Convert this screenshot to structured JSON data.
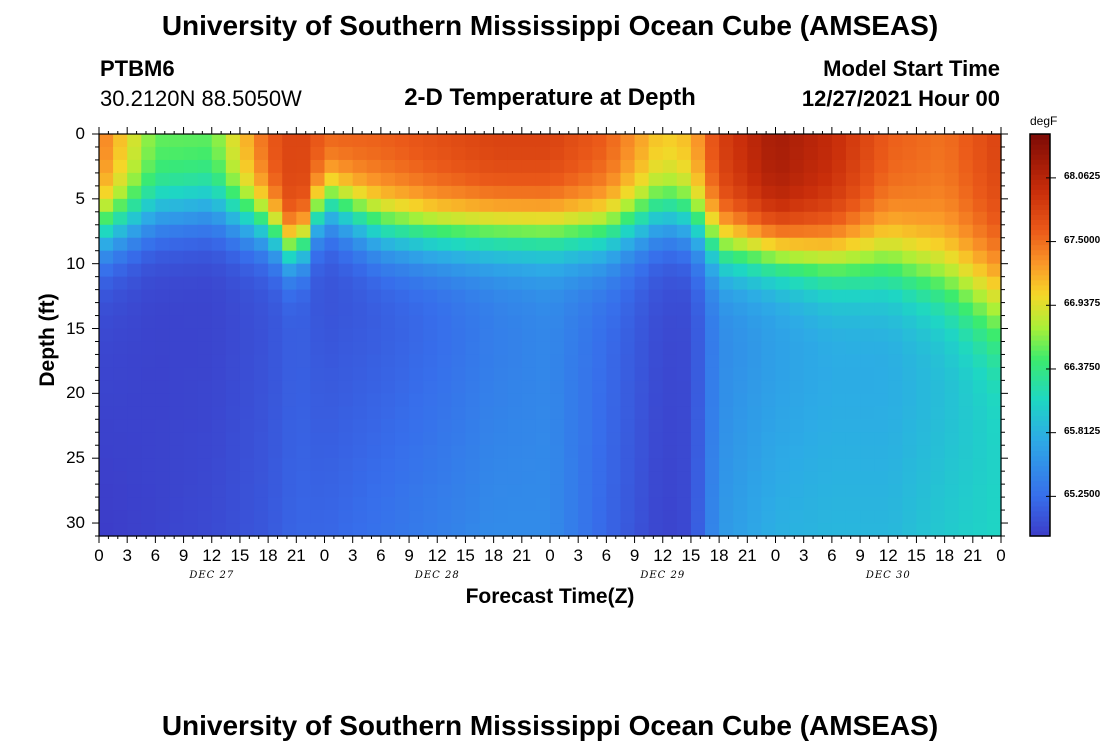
{
  "header": {
    "title": "University of Southern Mississippi Ocean Cube (AMSEAS)",
    "station_id": "PTBM6",
    "station_coords": "30.2120N  88.5050W",
    "plot_title": "2-D Temperature at Depth",
    "model_start_label": "Model Start Time",
    "model_start_value": "12/27/2021 Hour 00"
  },
  "footer": {
    "title": "University of Southern Mississippi Ocean Cube (AMSEAS)"
  },
  "chart_data": {
    "type": "heatmap",
    "title": "2-D Temperature at Depth",
    "xlabel": "Forecast Time(Z)",
    "ylabel": "Depth (ft)",
    "x_tick_labels": [
      "0",
      "3",
      "6",
      "9",
      "12",
      "15",
      "18",
      "21",
      "0",
      "3",
      "6",
      "9",
      "12",
      "15",
      "18",
      "21",
      "0",
      "3",
      "6",
      "9",
      "12",
      "15",
      "18",
      "21",
      "0",
      "3",
      "6",
      "9",
      "12",
      "15",
      "18",
      "21",
      "0"
    ],
    "x_range_hours": [
      0,
      96
    ],
    "date_labels": [
      {
        "label": "DEC 27",
        "hour": 12
      },
      {
        "label": "DEC 28",
        "hour": 36
      },
      {
        "label": "DEC 29",
        "hour": 60
      },
      {
        "label": "DEC 30",
        "hour": 84
      }
    ],
    "y_tick_labels": [
      "0",
      "5",
      "10",
      "15",
      "20",
      "25",
      "30"
    ],
    "y_ticks": [
      0,
      5,
      10,
      15,
      20,
      25,
      30
    ],
    "y_range_ft": [
      0,
      31
    ],
    "colorbar": {
      "unit": "degF",
      "range": [
        64.9,
        68.45
      ],
      "tick_values": [
        68.0625,
        67.5,
        66.9375,
        66.375,
        65.8125,
        65.25
      ],
      "tick_labels": [
        "68.0625",
        "67.5000",
        "66.9375",
        "66.3750",
        "65.8125",
        "65.2500"
      ]
    },
    "profile_hours": [
      0,
      6,
      12,
      18,
      21,
      24,
      30,
      36,
      42,
      48,
      54,
      60,
      63,
      66,
      72,
      78,
      84,
      90,
      96
    ],
    "surface_temp": [
      67.5,
      66.6,
      66.6,
      67.6,
      67.8,
      67.6,
      67.6,
      67.7,
      67.8,
      67.8,
      67.6,
      67.1,
      67.2,
      67.8,
      68.2,
      68.0,
      67.6,
      67.5,
      67.8
    ],
    "mixed_layer_depth_ft": [
      7.5,
      6.0,
      5.5,
      7.0,
      9.5,
      5.0,
      7.0,
      7.5,
      7.5,
      7.5,
      7.5,
      6.0,
      6.5,
      8.5,
      9.0,
      9.5,
      9.5,
      11.0,
      13.0
    ],
    "transition_width_ft": [
      3.5,
      3.5,
      3.5,
      3.0,
      2.5,
      3.0,
      3.5,
      3.5,
      3.5,
      3.5,
      3.5,
      3.5,
      3.5,
      3.5,
      3.5,
      4.0,
      4.5,
      5.0,
      6.0
    ],
    "deep_temp": [
      65.0,
      64.95,
      64.95,
      65.05,
      65.15,
      65.05,
      65.1,
      65.2,
      65.35,
      65.45,
      65.25,
      65.0,
      65.0,
      65.45,
      65.6,
      65.7,
      65.7,
      65.8,
      66.0
    ],
    "bottom_temp": [
      64.9,
      64.95,
      65.0,
      65.1,
      65.2,
      65.2,
      65.3,
      65.4,
      65.5,
      65.5,
      65.2,
      64.95,
      65.0,
      65.6,
      65.8,
      65.85,
      65.85,
      66.0,
      66.1
    ]
  }
}
